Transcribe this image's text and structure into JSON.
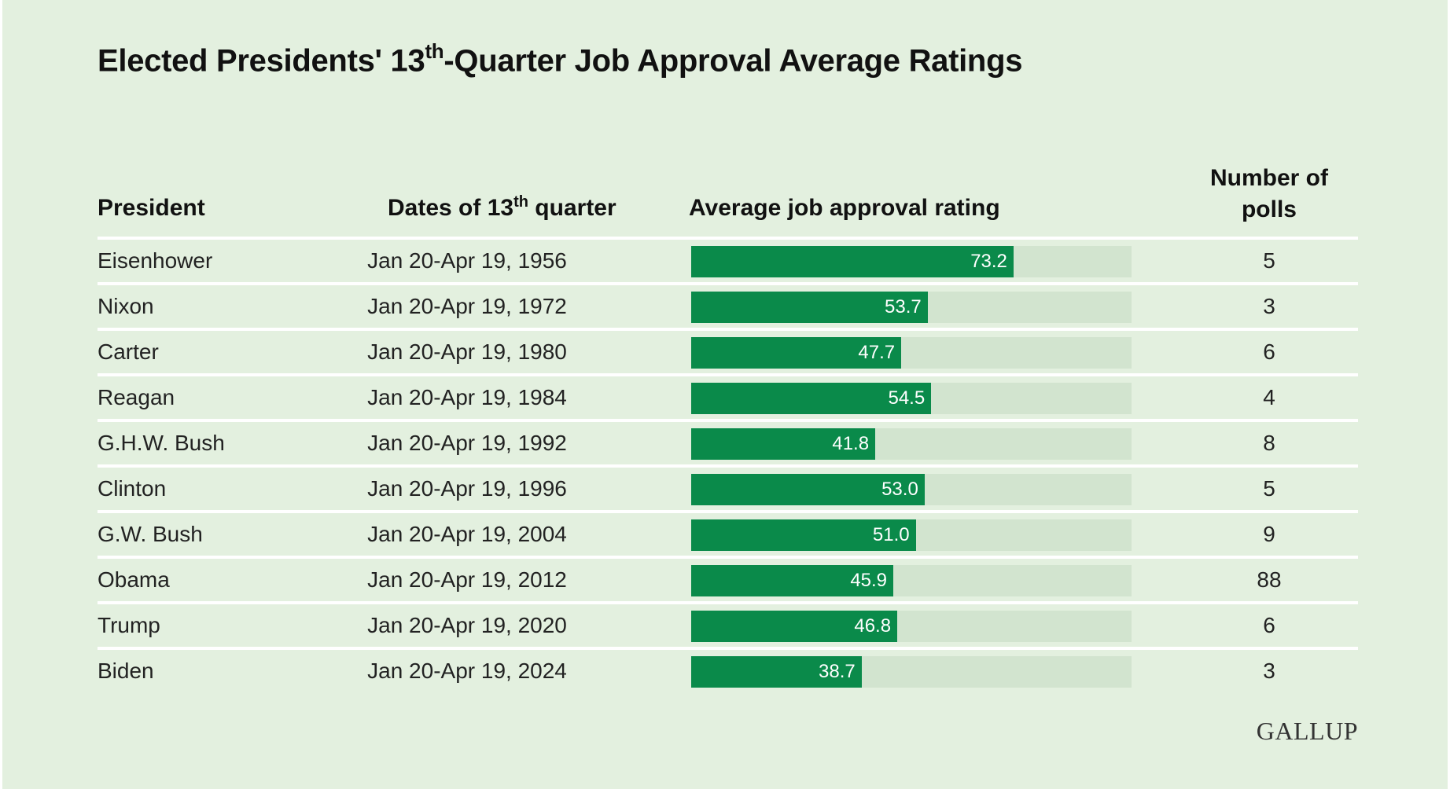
{
  "title_main": "Elected Presidents' 13",
  "title_sup": "th",
  "title_rest": "-Quarter Job Approval Average Ratings",
  "headers": {
    "president": "President",
    "dates_main": "Dates of 13",
    "dates_sup": "th",
    "dates_rest": " quarter",
    "rating": "Average job approval rating",
    "polls": "Number of polls"
  },
  "logo": "GALLUP",
  "colors": {
    "bar": "#0a8a4a",
    "track": "#d2e4cf",
    "background": "#e3f0df"
  },
  "chart_data": {
    "type": "table",
    "columns": [
      "President",
      "Dates of 13th quarter",
      "Average job approval rating",
      "Number of polls"
    ],
    "bar_max": 100,
    "rows": [
      {
        "president": "Eisenhower",
        "dates": "Jan 20-Apr 19, 1956",
        "rating": 73.2,
        "rating_label": "73.2",
        "polls": "5"
      },
      {
        "president": "Nixon",
        "dates": "Jan 20-Apr 19, 1972",
        "rating": 53.7,
        "rating_label": "53.7",
        "polls": "3"
      },
      {
        "president": "Carter",
        "dates": "Jan 20-Apr 19, 1980",
        "rating": 47.7,
        "rating_label": "47.7",
        "polls": "6"
      },
      {
        "president": "Reagan",
        "dates": "Jan 20-Apr 19, 1984",
        "rating": 54.5,
        "rating_label": "54.5",
        "polls": "4"
      },
      {
        "president": "G.H.W. Bush",
        "dates": "Jan 20-Apr 19, 1992",
        "rating": 41.8,
        "rating_label": "41.8",
        "polls": "8"
      },
      {
        "president": "Clinton",
        "dates": "Jan 20-Apr 19, 1996",
        "rating": 53.0,
        "rating_label": "53.0",
        "polls": "5"
      },
      {
        "president": "G.W. Bush",
        "dates": "Jan 20-Apr 19, 2004",
        "rating": 51.0,
        "rating_label": "51.0",
        "polls": "9"
      },
      {
        "president": "Obama",
        "dates": "Jan 20-Apr 19, 2012",
        "rating": 45.9,
        "rating_label": "45.9",
        "polls": "88"
      },
      {
        "president": "Trump",
        "dates": "Jan 20-Apr 19, 2020",
        "rating": 46.8,
        "rating_label": "46.8",
        "polls": "6"
      },
      {
        "president": "Biden",
        "dates": "Jan 20-Apr 19, 2024",
        "rating": 38.7,
        "rating_label": "38.7",
        "polls": "3"
      }
    ]
  }
}
